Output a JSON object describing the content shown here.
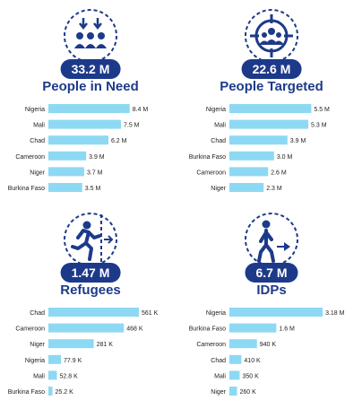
{
  "colors": {
    "bar": "#8dd9f3",
    "accent": "#1d3a8a"
  },
  "panels": [
    {
      "icon": "people-in-need-icon",
      "figure": "33.2 M",
      "heading": "People in Need",
      "chart_data": {
        "type": "bar",
        "orientation": "horizontal",
        "categories": [
          "Nigeria",
          "Mali",
          "Chad",
          "Cameroon",
          "Niger",
          "Burkina Faso"
        ],
        "values": [
          8.4,
          7.5,
          6.2,
          3.9,
          3.7,
          3.5
        ],
        "value_labels": [
          "8.4 M",
          "7.5 M",
          "6.2 M",
          "3.9 M",
          "3.7 M",
          "3.5 M"
        ],
        "xlim": [
          0,
          10
        ]
      }
    },
    {
      "icon": "people-targeted-icon",
      "figure": "22.6 M",
      "heading": "People Targeted",
      "chart_data": {
        "type": "bar",
        "orientation": "horizontal",
        "categories": [
          "Nigeria",
          "Mali",
          "Chad",
          "Burkina Faso",
          "Cameroon",
          "Niger"
        ],
        "values": [
          5.5,
          5.3,
          3.9,
          3.0,
          2.6,
          2.3
        ],
        "value_labels": [
          "5.5 M",
          "5.3 M",
          "3.9 M",
          "3.0 M",
          "2.6 M",
          "2.3 M"
        ],
        "xlim": [
          0,
          6.5
        ]
      }
    },
    {
      "icon": "refugee-icon",
      "figure": "1.47 M",
      "heading": "Refugees",
      "chart_data": {
        "type": "bar",
        "orientation": "horizontal",
        "categories": [
          "Chad",
          "Cameroon",
          "Niger",
          "Nigeria",
          "Mali",
          "Burkina Faso"
        ],
        "values": [
          561,
          468,
          281,
          77.9,
          52.8,
          25.2
        ],
        "value_labels": [
          "561 K",
          "468 K",
          "281 K",
          "77.9 K",
          "52.8 K",
          "25.2 K"
        ],
        "xlim": [
          0,
          600
        ]
      }
    },
    {
      "icon": "idp-icon",
      "figure": "6.7 M",
      "heading": "IDPs",
      "chart_data": {
        "type": "bar",
        "orientation": "horizontal",
        "categories": [
          "Nigeria",
          "Burkina Faso",
          "Cameroon",
          "Chad",
          "Mali",
          "Niger"
        ],
        "values": [
          3180,
          1600,
          940,
          410,
          350,
          260
        ],
        "value_labels": [
          "3.18 M",
          "1.6  M",
          "940 K",
          "410 K",
          "350 K",
          "260 K"
        ],
        "xlim": [
          0,
          3300
        ]
      }
    }
  ]
}
